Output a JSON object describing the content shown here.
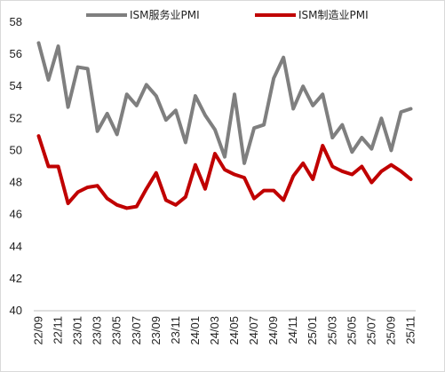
{
  "chart_data": {
    "type": "line",
    "title": "",
    "xlabel": "",
    "ylabel": "",
    "ylim": [
      40,
      58
    ],
    "yticks": [
      40,
      42,
      44,
      46,
      48,
      50,
      52,
      54,
      56,
      58
    ],
    "grid": false,
    "legend_position": "top",
    "x": [
      "22/09",
      "22/10",
      "22/11",
      "22/12",
      "23/01",
      "23/02",
      "23/03",
      "23/04",
      "23/05",
      "23/06",
      "23/07",
      "23/08",
      "23/09",
      "23/10",
      "23/11",
      "23/12",
      "24/01",
      "24/02",
      "24/03",
      "24/04",
      "24/05",
      "24/06",
      "24/07",
      "24/08",
      "24/09",
      "24/10",
      "24/11",
      "24/12",
      "25/01",
      "25/02",
      "25/03",
      "25/04",
      "25/05",
      "25/06",
      "25/07",
      "25/08",
      "25/09",
      "25/10",
      "25/11"
    ],
    "xtick_labels": [
      "22/09",
      "22/11",
      "23/01",
      "23/03",
      "23/05",
      "23/07",
      "23/09",
      "23/11",
      "24/01",
      "24/03",
      "24/05",
      "24/07",
      "24/09",
      "24/11",
      "25/01",
      "25/03",
      "25/05",
      "25/07",
      "25/09",
      "25/11"
    ],
    "series": [
      {
        "name": "ISM服务业PMI",
        "color": "#7f7f7f",
        "values": [
          56.7,
          54.4,
          56.5,
          52.7,
          55.2,
          55.1,
          51.2,
          52.3,
          51.0,
          53.5,
          52.8,
          54.1,
          53.4,
          51.9,
          52.5,
          50.5,
          53.4,
          52.2,
          51.3,
          49.6,
          53.5,
          49.2,
          51.4,
          51.6,
          54.5,
          55.8,
          52.6,
          54.0,
          52.8,
          53.5,
          50.8,
          51.6,
          49.9,
          50.8,
          50.1,
          52.0,
          50.0,
          52.4,
          52.6
        ]
      },
      {
        "name": "ISM制造业PMI",
        "color": "#c00000",
        "values": [
          50.9,
          49.0,
          49.0,
          46.7,
          47.4,
          47.7,
          47.8,
          47.0,
          46.6,
          46.4,
          46.5,
          47.6,
          48.6,
          46.9,
          46.6,
          47.1,
          49.1,
          47.6,
          49.8,
          48.8,
          48.5,
          48.3,
          47.0,
          47.5,
          47.5,
          46.9,
          48.4,
          49.2,
          48.2,
          50.3,
          49.0,
          48.7,
          48.5,
          49.0,
          48.0,
          48.7,
          49.1,
          48.7,
          48.2
        ]
      }
    ]
  }
}
